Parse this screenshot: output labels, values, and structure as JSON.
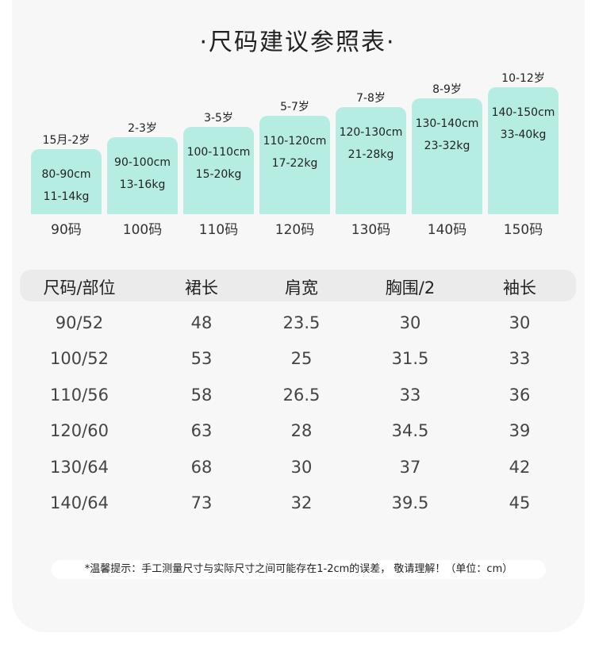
{
  "title": "·尺码建议参照表·",
  "cards": [
    {
      "age": "15月-2岁",
      "height": "80-90cm",
      "weight": "11-14kg",
      "size": "90码"
    },
    {
      "age": "2-3岁",
      "height": "90-100cm",
      "weight": "13-16kg",
      "size": "100码"
    },
    {
      "age": "3-5岁",
      "height": "100-110cm",
      "weight": "15-20kg",
      "size": "110码"
    },
    {
      "age": "5-7岁",
      "height": "110-120cm",
      "weight": "17-22kg",
      "size": "120码"
    },
    {
      "age": "7-8岁",
      "height": "120-130cm",
      "weight": "21-28kg",
      "size": "130码"
    },
    {
      "age": "8-9岁",
      "height": "130-140cm",
      "weight": "23-32kg",
      "size": "140码"
    },
    {
      "age": "10-12岁",
      "height": "140-150cm",
      "weight": "33-40kg",
      "size": "150码"
    }
  ],
  "table": {
    "header": [
      "尺码/部位",
      "裙长",
      "肩宽",
      "胸围/2",
      "袖长"
    ],
    "rows": [
      [
        "90/52",
        "48",
        "23.5",
        "30",
        "30"
      ],
      [
        "100/52",
        "53",
        "25",
        "31.5",
        "33"
      ],
      [
        "110/56",
        "58",
        "26.5",
        "33",
        "36"
      ],
      [
        "120/60",
        "63",
        "28",
        "34.5",
        "39"
      ],
      [
        "130/64",
        "68",
        "30",
        "37",
        "42"
      ],
      [
        "140/64",
        "73",
        "32",
        "39.5",
        "45"
      ]
    ]
  },
  "note": "*温馨提示：手工测量尺寸与实际尺寸之间可能存在1-2cm的误差， 敬请理解！（单位：cm）"
}
